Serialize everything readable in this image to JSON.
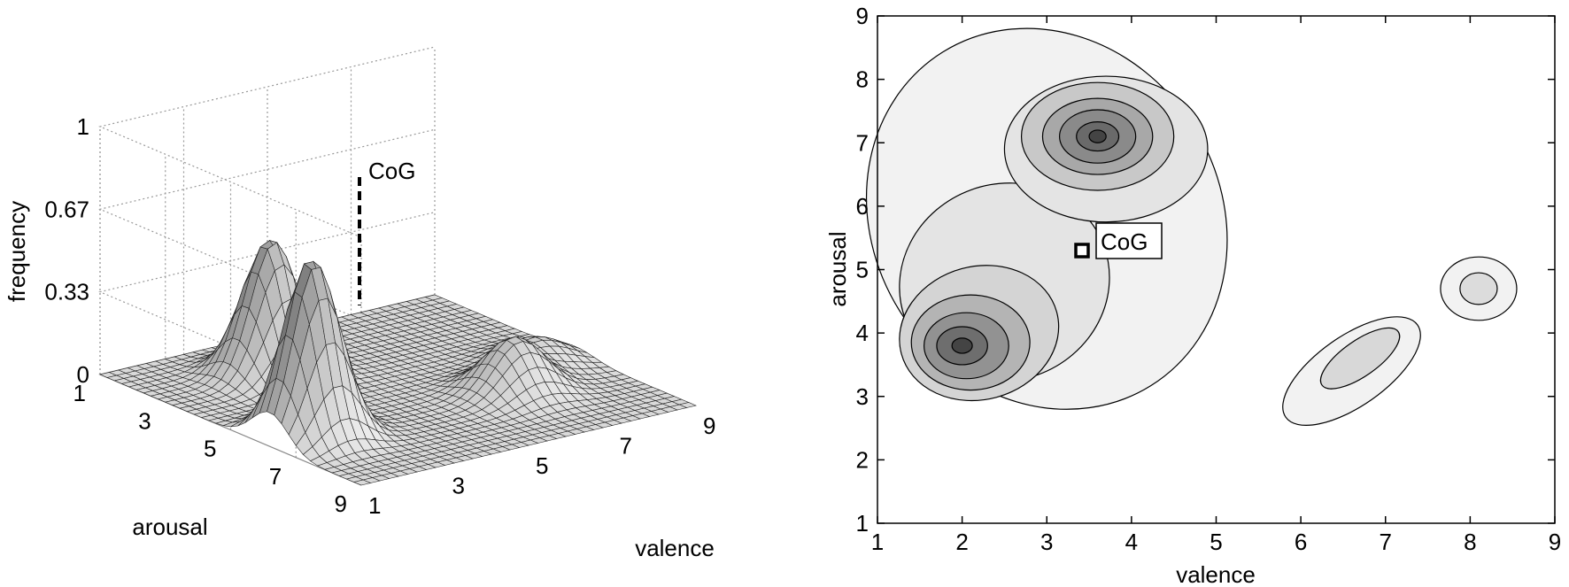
{
  "chart_data": [
    {
      "type": "surface",
      "zlabel": "frequency",
      "xlabel": "valence",
      "ylabel": "arousal",
      "xlim": [
        1,
        9
      ],
      "ylim": [
        1,
        9
      ],
      "zlim": [
        0,
        1
      ],
      "z_ticks": [
        "0",
        "0.33",
        "0.67",
        "1"
      ],
      "x_ticks": [
        "1",
        "3",
        "5",
        "7",
        "9"
      ],
      "y_ticks": [
        "1",
        "3",
        "5",
        "7",
        "9"
      ],
      "grid": true,
      "peaks": [
        {
          "valence": 2.0,
          "arousal": 3.8,
          "frequency": 0.72
        },
        {
          "valence": 3.6,
          "arousal": 7.1,
          "frequency": 0.55
        },
        {
          "valence": 6.7,
          "arousal": 3.6,
          "frequency": 0.22
        },
        {
          "valence": 8.1,
          "arousal": 4.7,
          "frequency": 0.1
        }
      ],
      "annotation": {
        "label": "CoG",
        "valence": 3.4,
        "arousal": 5.3
      }
    },
    {
      "type": "contour",
      "xlabel": "valence",
      "ylabel": "arousal",
      "xlim": [
        1,
        9
      ],
      "ylim": [
        1,
        9
      ],
      "x_ticks": [
        "1",
        "2",
        "3",
        "4",
        "5",
        "6",
        "7",
        "8",
        "9"
      ],
      "y_ticks": [
        "1",
        "2",
        "3",
        "4",
        "5",
        "6",
        "7",
        "8",
        "9"
      ],
      "grid": false,
      "annotation": {
        "label": "CoG",
        "valence": 3.4,
        "arousal": 5.3
      }
    }
  ]
}
